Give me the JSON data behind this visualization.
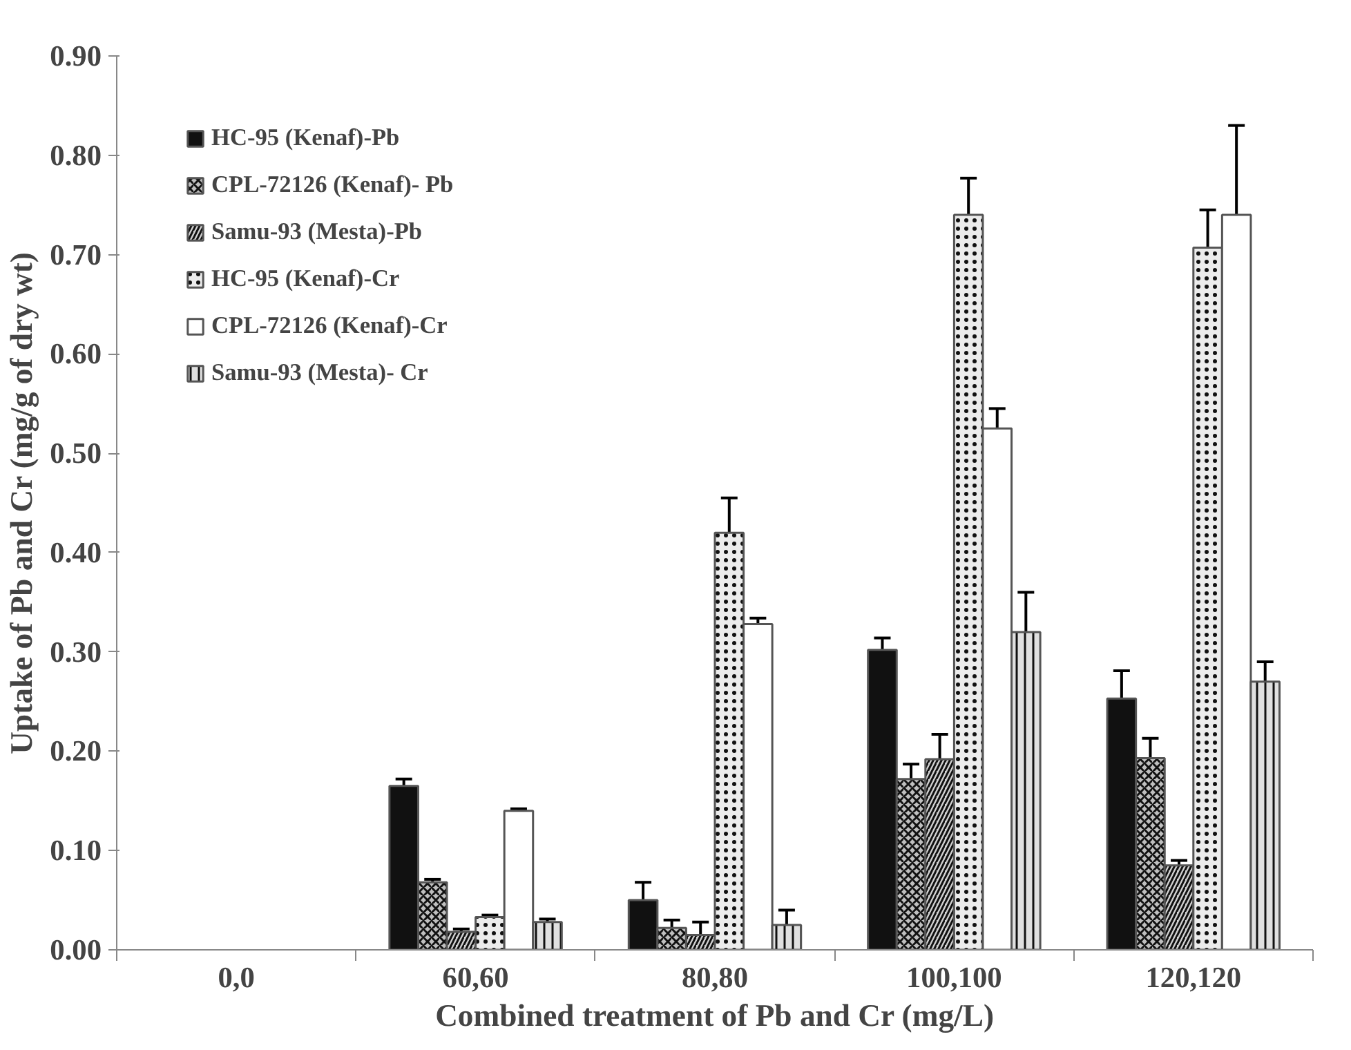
{
  "chart_data": {
    "type": "bar",
    "xlabel": "Combined treatment of Pb and Cr (mg/L)",
    "ylabel": "Uptake of Pb and Cr (mg/g of dry wt)",
    "categories": [
      "0,0",
      "60,60",
      "80,80",
      "100,100",
      "120,120"
    ],
    "series": [
      {
        "name": "HC-95 (Kenaf)-Pb",
        "color": "#111111",
        "values": [
          null,
          0.165,
          0.05,
          0.302,
          0.253
        ],
        "errors": [
          null,
          0.007,
          0.018,
          0.012,
          0.028
        ]
      },
      {
        "name": "CPL-72126 (Kenaf)- Pb",
        "color": "#bfbfbf",
        "values": [
          null,
          0.068,
          0.022,
          0.172,
          0.193
        ],
        "errors": [
          null,
          0.003,
          0.008,
          0.015,
          0.02
        ]
      },
      {
        "name": "Samu-93 (Mesta)-Pb",
        "color": "#d0d0d0",
        "values": [
          null,
          0.018,
          0.015,
          0.192,
          0.085
        ],
        "errors": [
          null,
          0.003,
          0.013,
          0.025,
          0.005
        ]
      },
      {
        "name": "HC-95 (Kenaf)-Cr",
        "color": "#ececec",
        "values": [
          null,
          0.033,
          0.42,
          0.74,
          0.707
        ],
        "errors": [
          null,
          0.002,
          0.035,
          0.037,
          0.038
        ]
      },
      {
        "name": "CPL-72126 (Kenaf)-Cr",
        "color": "#ffffff",
        "values": [
          null,
          0.14,
          0.328,
          0.525,
          0.74
        ],
        "errors": [
          null,
          0.002,
          0.006,
          0.02,
          0.09
        ]
      },
      {
        "name": "Samu-93 (Mesta)- Cr",
        "color": "#e0e0e0",
        "values": [
          null,
          0.028,
          0.025,
          0.32,
          0.27
        ],
        "errors": [
          null,
          0.003,
          0.015,
          0.04,
          0.02
        ]
      }
    ],
    "ylim": [
      0,
      0.9
    ],
    "yticks": [
      {
        "value": 0,
        "label": "0.00"
      },
      {
        "value": 0.1,
        "label": "0.10"
      },
      {
        "value": 0.2,
        "label": "0.20"
      },
      {
        "value": 0.3,
        "label": "0.30"
      },
      {
        "value": 0.4,
        "label": "0.40"
      },
      {
        "value": 0.5,
        "label": "0.50"
      },
      {
        "value": 0.6,
        "label": "0.60"
      },
      {
        "value": 0.7,
        "label": "0.70"
      },
      {
        "value": 0.8,
        "label": "0.80"
      },
      {
        "value": 0.9,
        "label": "0.90"
      }
    ],
    "grid": false,
    "legend": "top left"
  }
}
